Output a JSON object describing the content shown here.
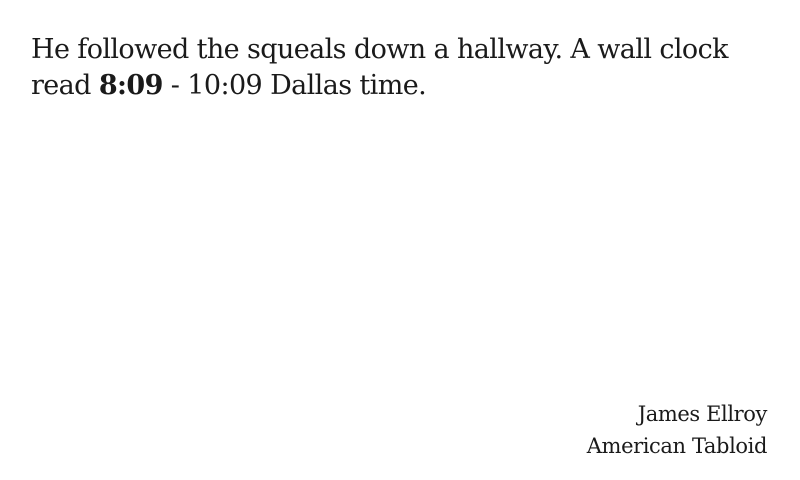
{
  "quote": {
    "text_before": "He followed the squeals down a hallway. A wall clock read ",
    "time_highlight": "8:09",
    "text_after": " - 10:09 Dallas time."
  },
  "attribution": {
    "author": "James Ellroy",
    "book": "American Tabloid"
  }
}
